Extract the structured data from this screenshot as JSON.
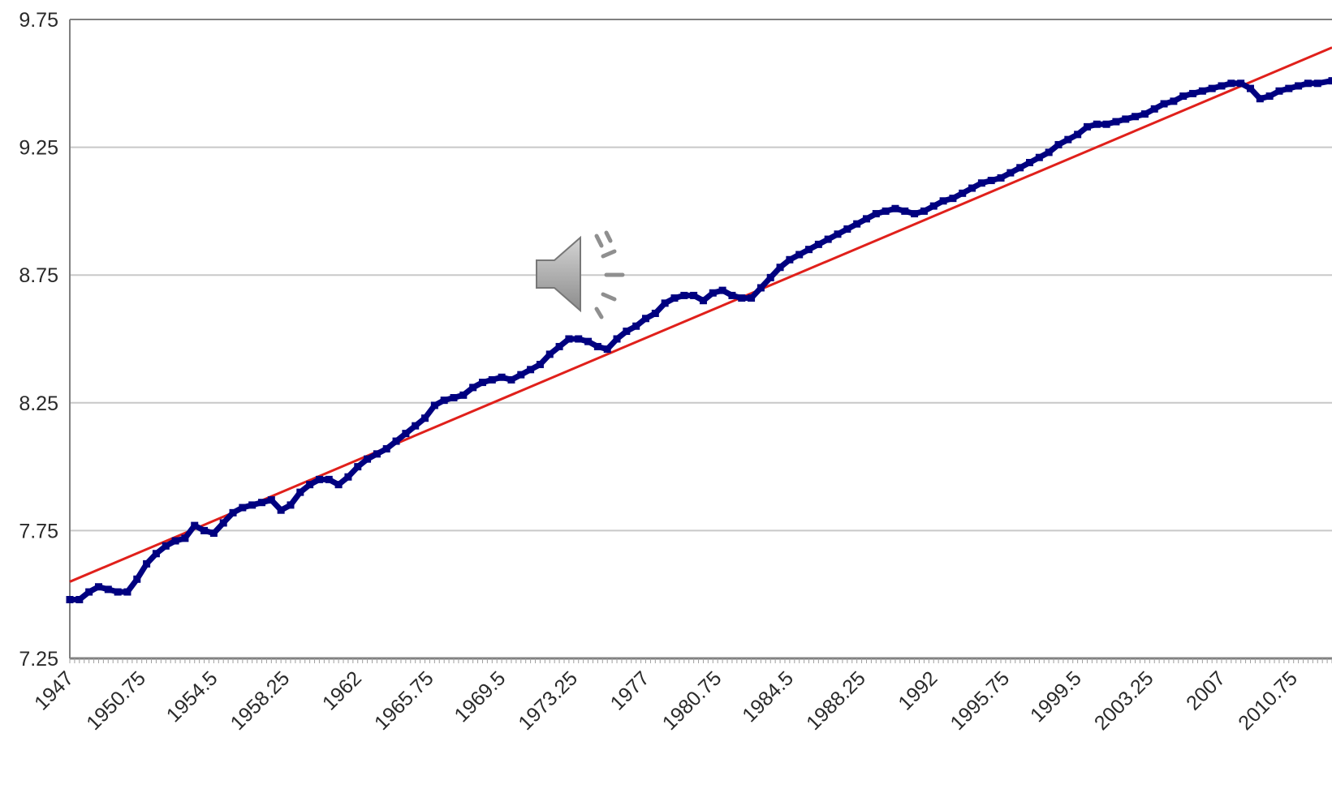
{
  "chart_data": {
    "type": "scatter",
    "title": "",
    "xlabel": "",
    "ylabel": "",
    "xlim": [
      1947,
      2012.75
    ],
    "ylim": [
      7.25,
      9.75
    ],
    "y_ticks": [
      "7.25",
      "7.75",
      "8.25",
      "8.75",
      "9.25",
      "9.75"
    ],
    "x_ticks": [
      "1947",
      "1950.75",
      "1954.5",
      "1958.25",
      "1962",
      "1965.75",
      "1969.5",
      "1973.25",
      "1977",
      "1980.75",
      "1984.5",
      "1988.25",
      "1992",
      "1995.75",
      "1999.5",
      "2003.25",
      "2007",
      "2010.75"
    ],
    "grid": true,
    "series": [
      {
        "kind": "scatter",
        "color": "#000080",
        "points": [
          [
            1947,
            7.48
          ],
          [
            1947.5,
            7.48
          ],
          [
            1948,
            7.51
          ],
          [
            1948.5,
            7.53
          ],
          [
            1949,
            7.52
          ],
          [
            1949.5,
            7.51
          ],
          [
            1950,
            7.51
          ],
          [
            1950.5,
            7.56
          ],
          [
            1951,
            7.62
          ],
          [
            1951.5,
            7.66
          ],
          [
            1952,
            7.69
          ],
          [
            1952.5,
            7.71
          ],
          [
            1953,
            7.72
          ],
          [
            1953.5,
            7.77
          ],
          [
            1954,
            7.75
          ],
          [
            1954.5,
            7.74
          ],
          [
            1955,
            7.78
          ],
          [
            1955.5,
            7.82
          ],
          [
            1956,
            7.84
          ],
          [
            1956.5,
            7.85
          ],
          [
            1957,
            7.86
          ],
          [
            1957.5,
            7.87
          ],
          [
            1958,
            7.83
          ],
          [
            1958.5,
            7.85
          ],
          [
            1959,
            7.9
          ],
          [
            1959.5,
            7.93
          ],
          [
            1960,
            7.95
          ],
          [
            1960.5,
            7.95
          ],
          [
            1961,
            7.93
          ],
          [
            1961.5,
            7.96
          ],
          [
            1962,
            8.0
          ],
          [
            1962.5,
            8.03
          ],
          [
            1963,
            8.05
          ],
          [
            1963.5,
            8.07
          ],
          [
            1964,
            8.1
          ],
          [
            1964.5,
            8.13
          ],
          [
            1965,
            8.16
          ],
          [
            1965.5,
            8.19
          ],
          [
            1966,
            8.24
          ],
          [
            1966.5,
            8.26
          ],
          [
            1967,
            8.27
          ],
          [
            1967.5,
            8.28
          ],
          [
            1968,
            8.31
          ],
          [
            1968.5,
            8.33
          ],
          [
            1969,
            8.34
          ],
          [
            1969.5,
            8.35
          ],
          [
            1970,
            8.34
          ],
          [
            1970.5,
            8.36
          ],
          [
            1971,
            8.38
          ],
          [
            1971.5,
            8.4
          ],
          [
            1972,
            8.44
          ],
          [
            1972.5,
            8.47
          ],
          [
            1973,
            8.5
          ],
          [
            1973.5,
            8.5
          ],
          [
            1974,
            8.49
          ],
          [
            1974.5,
            8.47
          ],
          [
            1975,
            8.46
          ],
          [
            1975.5,
            8.5
          ],
          [
            1976,
            8.53
          ],
          [
            1976.5,
            8.55
          ],
          [
            1977,
            8.58
          ],
          [
            1977.5,
            8.6
          ],
          [
            1978,
            8.64
          ],
          [
            1978.5,
            8.66
          ],
          [
            1979,
            8.67
          ],
          [
            1979.5,
            8.67
          ],
          [
            1980,
            8.65
          ],
          [
            1980.5,
            8.68
          ],
          [
            1981,
            8.69
          ],
          [
            1981.5,
            8.67
          ],
          [
            1982,
            8.66
          ],
          [
            1982.5,
            8.66
          ],
          [
            1983,
            8.7
          ],
          [
            1983.5,
            8.74
          ],
          [
            1984,
            8.78
          ],
          [
            1984.5,
            8.81
          ],
          [
            1985,
            8.83
          ],
          [
            1985.5,
            8.85
          ],
          [
            1986,
            8.87
          ],
          [
            1986.5,
            8.89
          ],
          [
            1987,
            8.91
          ],
          [
            1987.5,
            8.93
          ],
          [
            1988,
            8.95
          ],
          [
            1988.5,
            8.97
          ],
          [
            1989,
            8.99
          ],
          [
            1989.5,
            9.0
          ],
          [
            1990,
            9.01
          ],
          [
            1990.5,
            9.0
          ],
          [
            1991,
            8.99
          ],
          [
            1991.5,
            9.0
          ],
          [
            1992,
            9.02
          ],
          [
            1992.5,
            9.04
          ],
          [
            1993,
            9.05
          ],
          [
            1993.5,
            9.07
          ],
          [
            1994,
            9.09
          ],
          [
            1994.5,
            9.11
          ],
          [
            1995,
            9.12
          ],
          [
            1995.5,
            9.13
          ],
          [
            1996,
            9.15
          ],
          [
            1996.5,
            9.17
          ],
          [
            1997,
            9.19
          ],
          [
            1997.5,
            9.21
          ],
          [
            1998,
            9.23
          ],
          [
            1998.5,
            9.26
          ],
          [
            1999,
            9.28
          ],
          [
            1999.5,
            9.3
          ],
          [
            2000,
            9.33
          ],
          [
            2000.5,
            9.34
          ],
          [
            2001,
            9.34
          ],
          [
            2001.5,
            9.35
          ],
          [
            2002,
            9.36
          ],
          [
            2002.5,
            9.37
          ],
          [
            2003,
            9.38
          ],
          [
            2003.5,
            9.4
          ],
          [
            2004,
            9.42
          ],
          [
            2004.5,
            9.43
          ],
          [
            2005,
            9.45
          ],
          [
            2005.5,
            9.46
          ],
          [
            2006,
            9.47
          ],
          [
            2006.5,
            9.48
          ],
          [
            2007,
            9.49
          ],
          [
            2007.5,
            9.5
          ],
          [
            2008,
            9.5
          ],
          [
            2008.5,
            9.48
          ],
          [
            2009,
            9.44
          ],
          [
            2009.5,
            9.45
          ],
          [
            2010,
            9.47
          ],
          [
            2010.5,
            9.48
          ],
          [
            2011,
            9.49
          ],
          [
            2011.5,
            9.5
          ],
          [
            2012,
            9.5
          ],
          [
            2012.75,
            9.51
          ]
        ]
      },
      {
        "kind": "trendline",
        "color": "#e0201b",
        "points": [
          [
            1947,
            7.55
          ],
          [
            2012.75,
            9.64
          ]
        ]
      }
    ]
  },
  "overlay": {
    "icon": "speaker-volume-icon",
    "color": "#9a9a9a"
  }
}
